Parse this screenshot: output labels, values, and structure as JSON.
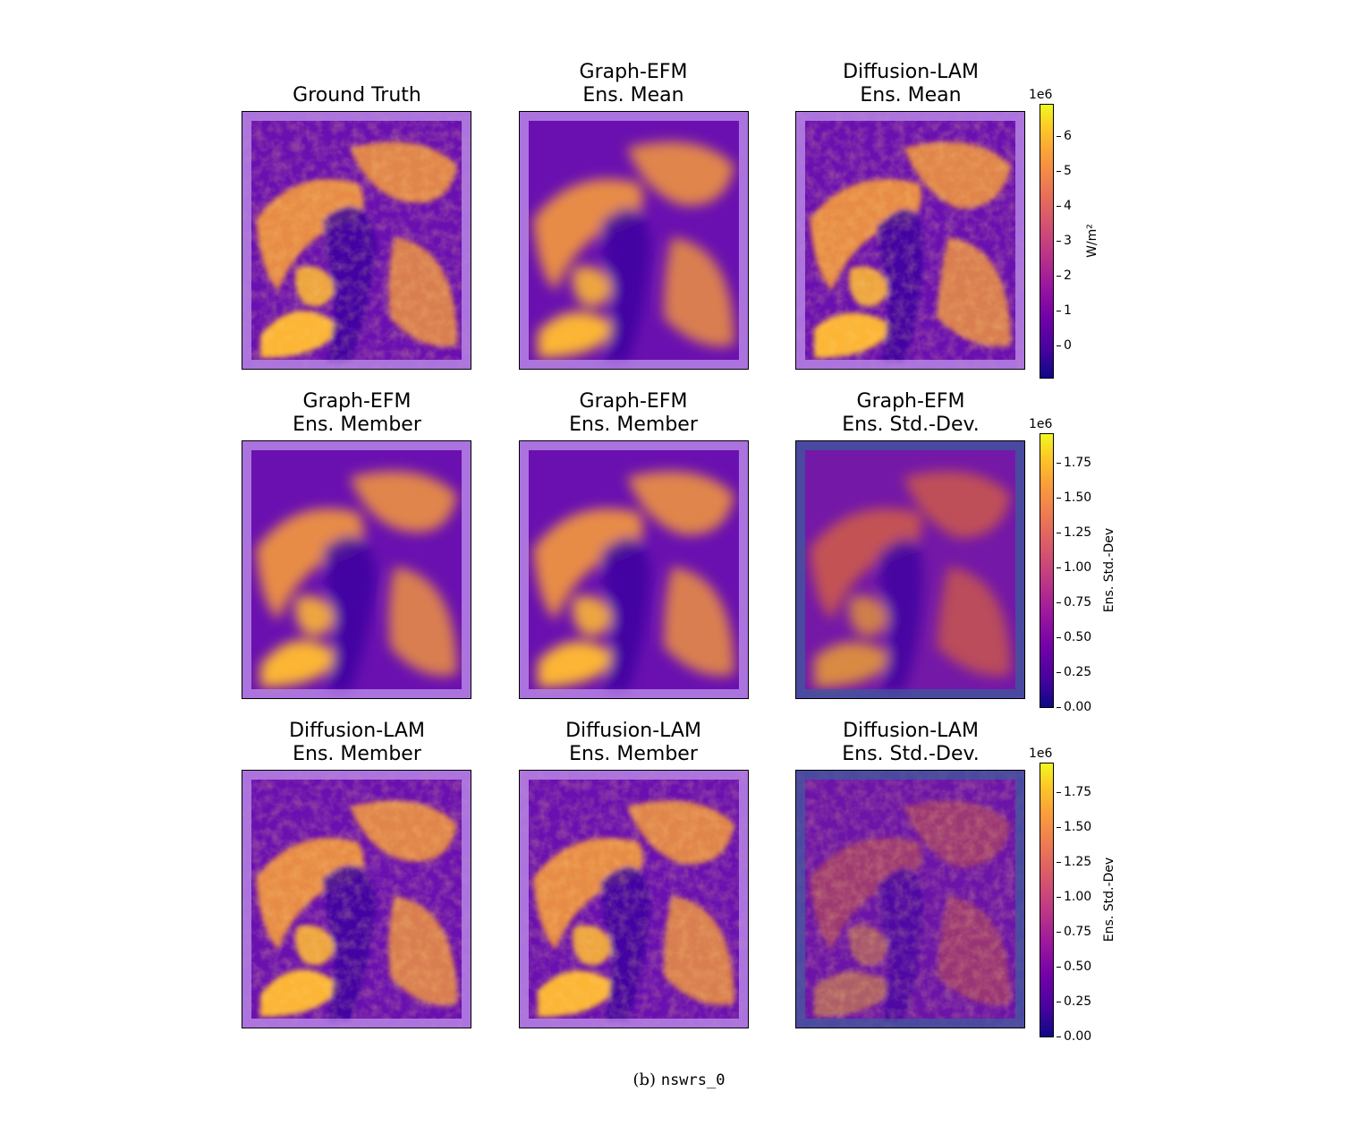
{
  "panels": [
    {
      "title": "Ground Truth",
      "kind": "gt"
    },
    {
      "title": "Graph-EFM\nEns. Mean",
      "kind": "mean_smooth"
    },
    {
      "title": "Diffusion-LAM\nEns. Mean",
      "kind": "mean_sharp"
    },
    {
      "title": "Graph-EFM\nEns. Member",
      "kind": "member_blob"
    },
    {
      "title": "Graph-EFM\nEns. Member",
      "kind": "member_blob2"
    },
    {
      "title": "Graph-EFM\nEns. Std.-Dev.",
      "kind": "std_smooth"
    },
    {
      "title": "Diffusion-LAM\nEns. Member",
      "kind": "member_sharp"
    },
    {
      "title": "Diffusion-LAM\nEns. Member",
      "kind": "member_sharp2"
    },
    {
      "title": "Diffusion-LAM\nEns. Std.-Dev.",
      "kind": "std_sharp"
    }
  ],
  "colorbars": [
    {
      "exponent": "1e6",
      "label": "W/m²",
      "ticks": [
        "6",
        "5",
        "4",
        "3",
        "2",
        "1",
        "0"
      ]
    },
    {
      "exponent": "1e6",
      "label": "Ens. Std.-Dev",
      "ticks": [
        "1.75",
        "1.50",
        "1.25",
        "1.00",
        "0.75",
        "0.50",
        "0.25",
        "0.00"
      ]
    },
    {
      "exponent": "1e6",
      "label": "Ens. Std.-Dev",
      "ticks": [
        "1.75",
        "1.50",
        "1.25",
        "1.00",
        "0.75",
        "0.50",
        "0.25",
        "0.00"
      ]
    }
  ],
  "caption": {
    "prefix": "(b)",
    "variable": "nswrs_0"
  }
}
